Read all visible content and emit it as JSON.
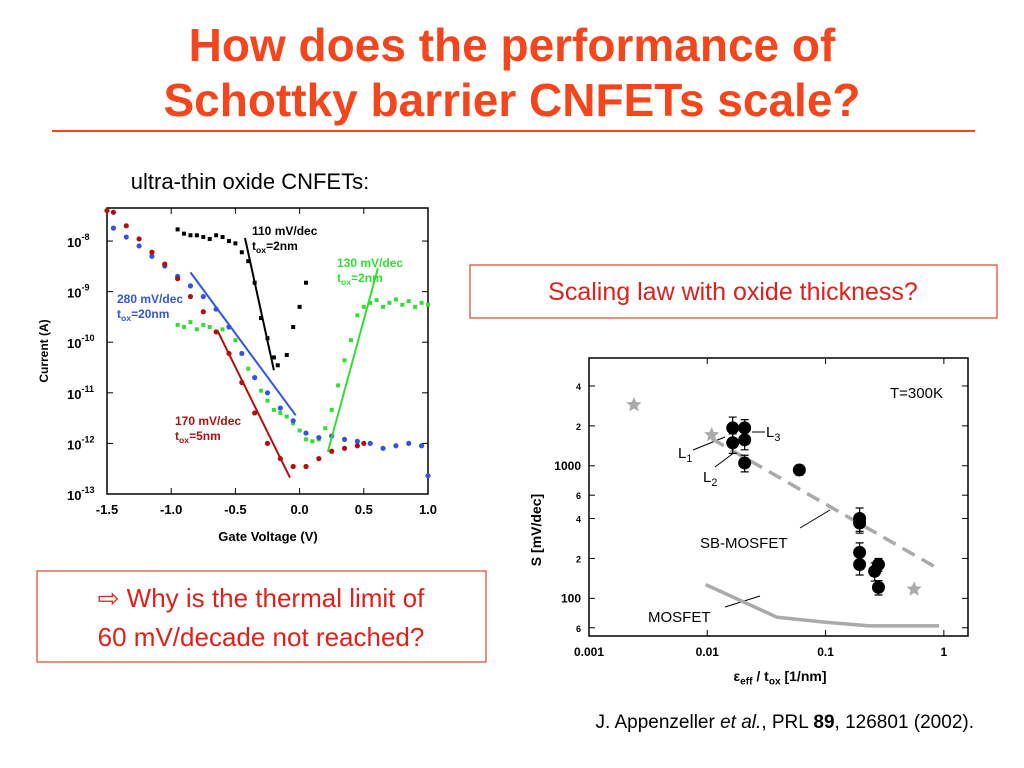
{
  "slide": {
    "title_lines": [
      "How does the performance of",
      "Schottky barrier CNFETs scale?"
    ],
    "question_box": "Scaling law with oxide thickness?",
    "note_box": [
      "⇨ Why is the thermal limit of",
      "60 mV/decade not reached?"
    ],
    "citation": [
      "J. Appenzeller ",
      "et al.",
      ", PRL ",
      "89",
      ", 126801 (2002)."
    ]
  },
  "chart_data": [
    {
      "type": "scatter",
      "title": "ultra-thin oxide CNFETs:",
      "x_label": "Gate Voltage (V)",
      "y_label": "Current  (A)",
      "xlim": [
        -1.5,
        1.0
      ],
      "ylim": [
        1e-13,
        4.5e-08
      ],
      "ylog": true,
      "xticks": [
        -1.5,
        {
          "value": -1.0,
          "label": "-1.0"
        },
        -0.5,
        {
          "value": 0,
          "label": "0.0"
        },
        0.5,
        {
          "value": 1.0,
          "label": "1.0"
        }
      ],
      "yticks": [
        {
          "value": 1e-13,
          "label": "10",
          "exponent": "-13"
        },
        {
          "value": 1e-12,
          "label": "10",
          "exponent": "-12"
        },
        {
          "value": 1e-11,
          "label": "10",
          "exponent": "-11"
        },
        {
          "value": 1e-10,
          "label": "10",
          "exponent": "-10"
        },
        {
          "value": 1e-09,
          "label": "10",
          "exponent": "-9"
        },
        {
          "value": 1e-08,
          "label": "10",
          "exponent": "-8"
        }
      ],
      "series": [
        {
          "color": "#000000",
          "marker": "square",
          "x": [
            -0.95,
            -0.9,
            -0.85,
            -0.8,
            -0.75,
            -0.7,
            -0.65,
            -0.6,
            -0.55,
            -0.5,
            -0.45,
            -0.4,
            -0.35,
            -0.3,
            -0.25,
            -0.2,
            -0.17,
            -0.1,
            -0.05,
            0.0,
            0.05
          ],
          "values": [
            1.7e-08,
            1.4e-08,
            1.3e-08,
            1.3e-08,
            1.2e-08,
            1.1e-08,
            1.3e-08,
            1.2e-08,
            1e-08,
            9e-09,
            6e-09,
            4e-09,
            1.5e-09,
            3e-10,
            1.2e-10,
            5e-11,
            3.5e-11,
            5.6e-11,
            2e-10,
            5e-10,
            1.5e-09
          ]
        },
        {
          "color": "#33dd33",
          "marker": "square",
          "x": [
            -0.95,
            -0.9,
            -0.85,
            -0.8,
            -0.75,
            -0.7,
            -0.65,
            -0.6,
            -0.55,
            -0.5,
            -0.45,
            -0.4,
            -0.35,
            -0.3,
            -0.25,
            -0.2,
            -0.15,
            -0.1,
            -0.05,
            0.0,
            0.05,
            0.1,
            0.15,
            0.2,
            0.25,
            0.3,
            0.35,
            0.4,
            0.45,
            0.5,
            0.55,
            0.6,
            0.65,
            0.7,
            0.75,
            0.8,
            0.85,
            0.9,
            0.95,
            1.0
          ],
          "values": [
            2.2e-10,
            2e-10,
            2.5e-10,
            1.8e-10,
            2.2e-10,
            2e-10,
            1.6e-10,
            1.8e-10,
            2e-10,
            1.1e-10,
            6e-11,
            3e-11,
            2e-11,
            1.1e-11,
            7e-12,
            4.6e-12,
            4e-12,
            3.4e-12,
            2.5e-12,
            1.8e-12,
            1.2e-12,
            1.1e-12,
            1.2e-12,
            2e-12,
            4.6e-12,
            1.4e-11,
            4.4e-11,
            1.1e-10,
            3.4e-10,
            5e-10,
            6e-10,
            6.8e-10,
            5e-10,
            6e-10,
            7e-10,
            5.5e-10,
            6.5e-10,
            5e-10,
            6e-10,
            5.5e-10
          ]
        },
        {
          "color": "#3355dd",
          "marker": "dot",
          "x": [
            -1.45,
            -1.35,
            -1.25,
            -1.15,
            -1.05,
            -0.95,
            -0.85,
            -0.75,
            -0.65,
            -0.55,
            -0.45,
            -0.35,
            -0.25,
            -0.15,
            -0.05,
            0.05,
            0.15,
            0.25,
            0.35,
            0.45,
            0.55,
            0.65,
            0.75,
            0.85,
            0.95,
            1.0
          ],
          "values": [
            1.8e-08,
            1.2e-08,
            8e-09,
            5e-09,
            3.2e-09,
            2e-09,
            1.3e-09,
            8e-10,
            4.5e-10,
            2e-10,
            6e-11,
            2e-11,
            1e-11,
            5e-12,
            2.8e-12,
            1.6e-12,
            1.3e-12,
            1.4e-12,
            1.2e-12,
            1.1e-12,
            1e-12,
            8e-13,
            9e-13,
            1e-12,
            9e-13,
            2.3e-13
          ]
        },
        {
          "color": "#b01010",
          "marker": "dot",
          "x": [
            -1.5,
            -1.45,
            -1.35,
            -1.25,
            -1.15,
            -1.05,
            -0.95,
            -0.85,
            -0.75,
            -0.65,
            -0.55,
            -0.45,
            -0.35,
            -0.25,
            -0.15,
            -0.05,
            0.05,
            0.15,
            0.25,
            0.35,
            0.45,
            0.5
          ],
          "values": [
            4e-08,
            3.7e-08,
            2e-08,
            1.1e-08,
            6e-09,
            3.5e-09,
            1.8e-09,
            8e-10,
            4e-10,
            1.6e-10,
            6e-11,
            1.6e-11,
            4e-12,
            1e-12,
            5e-13,
            3.5e-13,
            3.5e-13,
            5e-13,
            7e-13,
            8e-13,
            9e-13,
            1e-12
          ]
        },
        {
          "color": "#000000",
          "marker": "line",
          "x": [
            -0.425,
            -0.2
          ],
          "values": [
            1.15e-08,
            2.8e-11
          ]
        },
        {
          "color": "#33dd33",
          "marker": "line",
          "x": [
            0.22,
            0.61
          ],
          "values": [
            6.8e-13,
            2.9e-09
          ]
        },
        {
          "color": "#3355dd",
          "marker": "line",
          "x": [
            -0.85,
            -0.03
          ],
          "values": [
            2.4e-09,
            3.6e-12
          ]
        },
        {
          "color": "#b01010",
          "marker": "line",
          "x": [
            -0.64,
            -0.075
          ],
          "values": [
            1.7e-10,
            2.1e-13
          ]
        }
      ],
      "annotations": [
        {
          "color": "#000000",
          "lines": [
            [
              "110 mV/dec"
            ],
            [
              "t",
              "ox",
              "=2nm"
            ]
          ]
        },
        {
          "color": "#33dd33",
          "lines": [
            [
              "130 mV/dec"
            ],
            [
              "t",
              "ox",
              "=2nm"
            ]
          ]
        },
        {
          "color": "#3355dd",
          "lines": [
            [
              "280 mV/dec"
            ],
            [
              "t",
              "ox",
              "=20nm"
            ]
          ]
        },
        {
          "color": "#b01010",
          "lines": [
            [
              "170 mV/dec"
            ],
            [
              "t",
              "ox",
              "=5nm"
            ]
          ]
        }
      ]
    },
    {
      "type": "scatter",
      "x_label": [
        "ε",
        "eff",
        " / t",
        "ox",
        "  [1/nm]"
      ],
      "y_label": "S [mV/dec]",
      "xlim": [
        0.001,
        1.6
      ],
      "ylim": [
        52,
        6500
      ],
      "xlog": true,
      "ylog": true,
      "xticks": [
        0.001,
        0.01,
        0.1,
        1
      ],
      "yticks": [
        {
          "value": 60,
          "label": "6"
        },
        100,
        {
          "value": 200,
          "label": "2"
        },
        {
          "value": 400,
          "label": "4"
        },
        {
          "value": 600,
          "label": "6"
        },
        1000,
        {
          "value": 2000,
          "label": "2"
        },
        {
          "value": 4000,
          "label": "4"
        }
      ],
      "series": [
        {
          "color": "#aaaaaa",
          "marker": "line",
          "x": [
            0.0097,
            0.039,
            0.1,
            0.235,
            0.91
          ],
          "values": [
            127,
            72,
            66,
            62,
            62
          ]
        },
        {
          "color": "#aaaaaa",
          "marker": "dashed",
          "x": [
            0.0109,
            0.92
          ],
          "values": [
            1600,
            165
          ]
        },
        {
          "color": "#aaaaaa",
          "marker": "star",
          "x": [
            0.0024,
            0.0109,
            0.56
          ],
          "values": [
            2880,
            1710,
            117
          ]
        },
        {
          "color": "#000000",
          "marker": "circle",
          "x": [
            0.0164,
            0.0164,
            0.0207,
            0.0207,
            0.0207,
            0.06,
            0.194,
            0.194,
            0.194,
            0.194,
            0.26,
            0.28,
            0.28
          ],
          "values": [
            1930,
            1490,
            1930,
            1570,
            1050,
            930,
            400,
            370,
            222,
            180,
            160,
            180,
            121
          ],
          "errors": [
            400,
            250,
            300,
            250,
            150,
            80,
            80,
            60,
            40,
            30,
            25,
            20,
            15
          ]
        }
      ],
      "annotations": [
        {
          "color": "#000000",
          "lines": [
            [
              "T=300K"
            ]
          ]
        },
        {
          "color": "#000000",
          "lines": [
            [
              "L",
              "1"
            ]
          ]
        },
        {
          "color": "#000000",
          "lines": [
            [
              "L",
              "2"
            ]
          ]
        },
        {
          "color": "#000000",
          "lines": [
            [
              "L",
              "3"
            ]
          ]
        },
        {
          "color": "#000000",
          "lines": [
            [
              "SB-MOSFET"
            ]
          ]
        },
        {
          "color": "#000000",
          "lines": [
            [
              "MOSFET"
            ]
          ]
        }
      ]
    }
  ]
}
